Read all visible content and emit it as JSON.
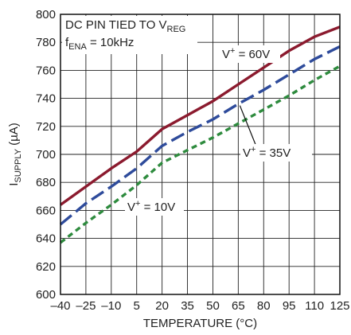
{
  "chart_data": {
    "type": "line",
    "xlabel": "TEMPERATURE (°C)",
    "ylabel": "I",
    "ylabel_sub": "SUPPLY",
    "ylabel_unit": " (µA)",
    "xlim": [
      -40,
      125
    ],
    "ylim": [
      600,
      800
    ],
    "x_ticks": [
      -40,
      -25,
      -10,
      5,
      20,
      35,
      50,
      65,
      80,
      95,
      110,
      125
    ],
    "x_tick_labels": [
      "–40",
      "–25",
      "–10",
      "5",
      "20",
      "35",
      "50",
      "65",
      "80",
      "95",
      "110",
      "125"
    ],
    "y_ticks": [
      600,
      620,
      640,
      660,
      680,
      700,
      720,
      740,
      760,
      780,
      800
    ],
    "y_tick_labels": [
      "600",
      "620",
      "640",
      "660",
      "680",
      "700",
      "720",
      "740",
      "760",
      "780",
      "800"
    ],
    "grid": true,
    "note_line1": {
      "main": "DC PIN TIED TO V",
      "sub": "REG"
    },
    "note_line2": {
      "pre": "f",
      "sub": "ENA",
      "post": " = 10kHz"
    },
    "series": [
      {
        "name": "V+ = 60V",
        "color": "#8b1a2e",
        "style": "solid",
        "label": {
          "main": "V",
          "sup": "+",
          "post": " = 60V"
        },
        "x": [
          -40,
          -25,
          -10,
          5,
          20,
          35,
          50,
          65,
          80,
          95,
          110,
          125
        ],
        "y": [
          664,
          677,
          690,
          702,
          718,
          728,
          738,
          750,
          762,
          774,
          784,
          791
        ]
      },
      {
        "name": "V+ = 35V",
        "color": "#2e4b9b",
        "style": "dashed",
        "label": {
          "main": "V",
          "sup": "+",
          "post": " = 35V"
        },
        "x": [
          -40,
          -25,
          -10,
          5,
          20,
          35,
          50,
          65,
          80,
          95,
          110,
          125
        ],
        "y": [
          650,
          665,
          677,
          690,
          706,
          716,
          725,
          736,
          746,
          757,
          768,
          777
        ]
      },
      {
        "name": "V+ = 10V",
        "color": "#2e8b3e",
        "style": "dotted",
        "label": {
          "main": "V",
          "sup": "+",
          "post": " = 10V"
        },
        "x": [
          -40,
          -25,
          -10,
          5,
          20,
          35,
          50,
          65,
          80,
          95,
          110,
          125
        ],
        "y": [
          637,
          651,
          664,
          678,
          694,
          703,
          712,
          722,
          732,
          742,
          753,
          763
        ]
      }
    ]
  }
}
